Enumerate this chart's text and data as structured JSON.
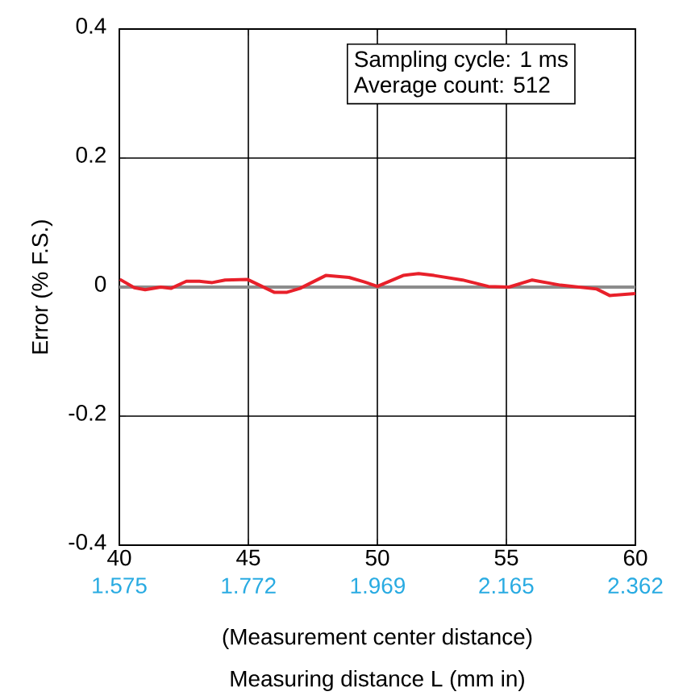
{
  "chart_data": {
    "type": "line",
    "xlabel": "Measuring distance L (mm in)",
    "ylabel": "Error (% F.S.)",
    "annotations": [
      "Sampling cycle: 1 ms",
      "Average count: 512",
      "(Measurement center distance)"
    ],
    "series": [
      {
        "color": "#e8202a",
        "x": [
          40.02,
          40.58,
          41.0,
          41.6,
          42.0,
          42.6,
          43.1,
          43.6,
          44.1,
          44.96,
          46.0,
          46.5,
          47.0,
          48.0,
          48.9,
          49.5,
          50.0,
          51.0,
          51.6,
          52.2,
          53.3,
          54.3,
          55.1,
          56.0,
          57.1,
          58.5,
          59.0,
          60.0
        ],
        "values": [
          0.012,
          -0.001,
          -0.004,
          0.0,
          -0.002,
          0.009,
          0.009,
          0.007,
          0.011,
          0.012,
          -0.008,
          -0.008,
          -0.002,
          0.018,
          0.015,
          0.008,
          0.001,
          0.018,
          0.021,
          0.018,
          0.011,
          0.001,
          0.0,
          0.011,
          0.003,
          -0.003,
          -0.013,
          -0.01
        ]
      }
    ],
    "xlim": [
      40,
      60
    ],
    "xticks": [
      40,
      45,
      50,
      55,
      60
    ],
    "x2lim": [
      1.575,
      2.362
    ],
    "x2ticks": [
      1.575,
      1.772,
      1.969,
      2.165,
      2.362
    ],
    "ylim": [
      -0.4,
      0.4
    ],
    "yticks": [
      -0.4,
      -0.2,
      0,
      0.2,
      0.4
    ],
    "ref_lines": [
      {
        "axis": "y",
        "value": 0,
        "color": "#8c8c8c"
      }
    ],
    "grid": true,
    "marker": "none",
    "line_style": "solid"
  }
}
